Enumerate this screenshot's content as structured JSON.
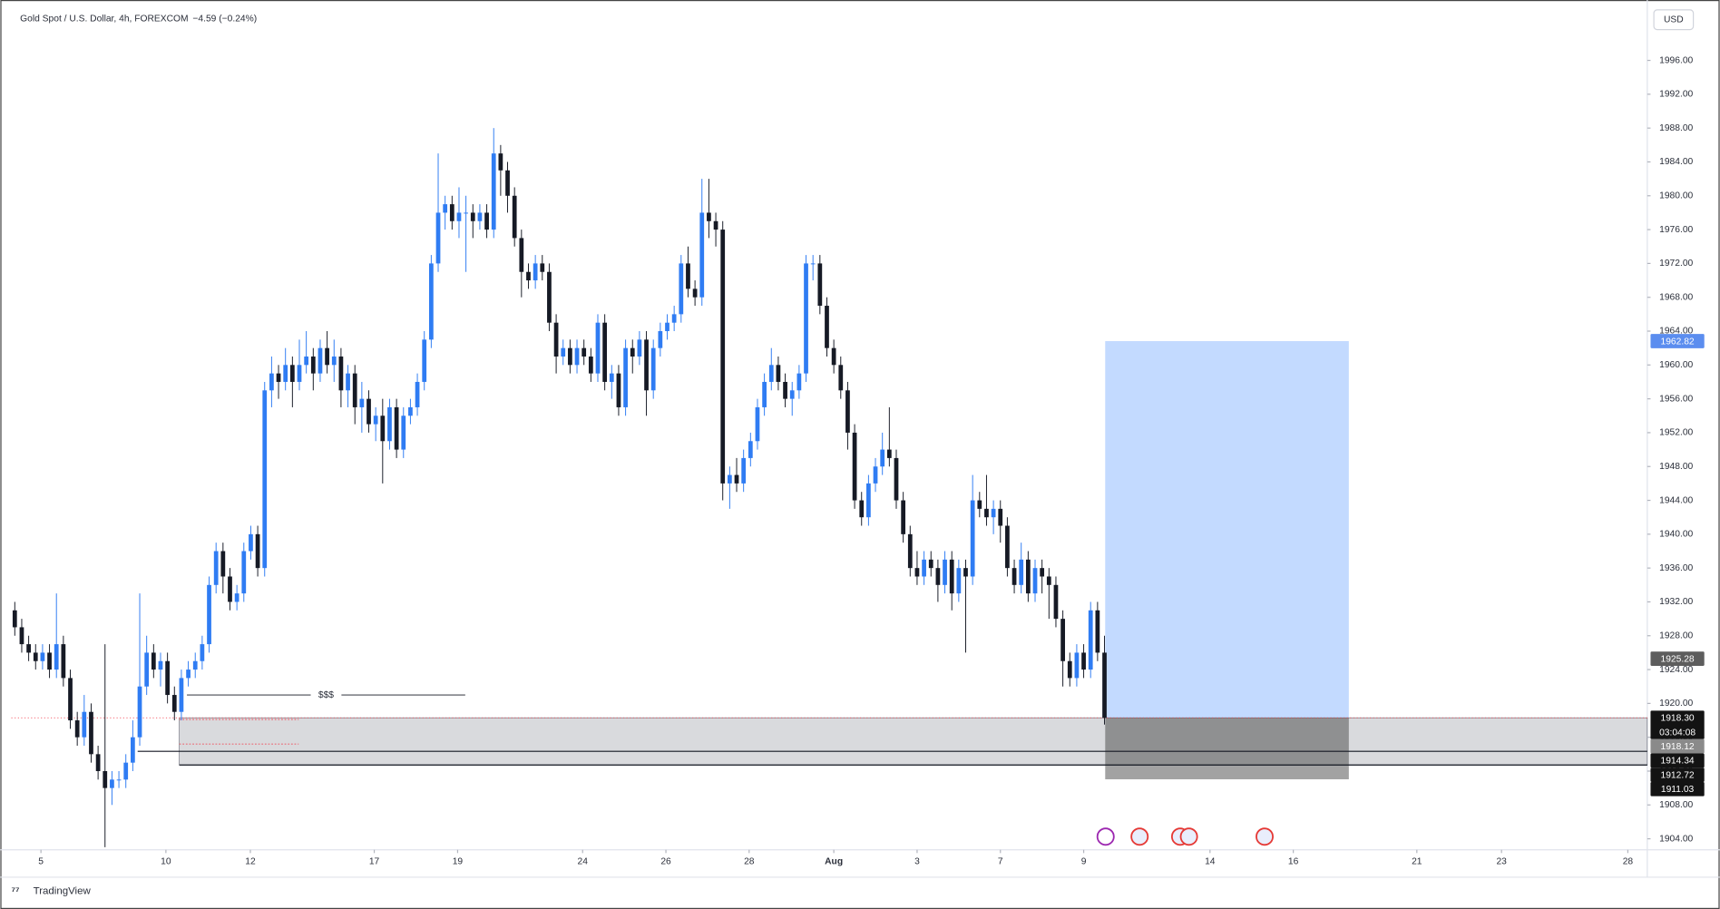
{
  "header": {
    "symbol": "Gold Spot / U.S. Dollar, 4h, FOREXCOM",
    "change": "−4.59 (−0.24%)",
    "currency": "USD"
  },
  "chart_data": {
    "type": "candlestick",
    "open": [
      1931,
      1929,
      1927,
      1926,
      1925,
      1926,
      1924,
      1927,
      1923,
      1918,
      1916,
      1919,
      1914,
      1912,
      1910,
      1911,
      1911,
      1913,
      1916,
      1922,
      1926,
      1924,
      1925,
      1921,
      1919,
      1923,
      1924,
      1925,
      1927,
      1934,
      1938,
      1935,
      1932,
      1933,
      1938,
      1940,
      1936,
      1957,
      1959,
      1958,
      1960,
      1958,
      1960,
      1961,
      1959,
      1962,
      1960,
      1961,
      1957,
      1959,
      1955,
      1956,
      1953,
      1954,
      1951,
      1955,
      1950,
      1954,
      1955,
      1958,
      1963,
      1972,
      1978,
      1979,
      1977,
      1978,
      1978,
      1977,
      1978,
      1976,
      1985,
      1983,
      1980,
      1975,
      1971,
      1970,
      1972,
      1971,
      1965,
      1961,
      1962,
      1960,
      1962,
      1961,
      1959,
      1965,
      1958,
      1959,
      1955,
      1962,
      1961,
      1963,
      1957,
      1962,
      1964,
      1965,
      1966,
      1972,
      1969,
      1968,
      1978,
      1977,
      1976,
      1946,
      1947,
      1946,
      1949,
      1951,
      1955,
      1958,
      1960,
      1958,
      1956,
      1957,
      1959,
      1972,
      1972,
      1967,
      1962,
      1960,
      1957,
      1952,
      1944,
      1942,
      1946,
      1948,
      1950,
      1949,
      1944,
      1940,
      1936,
      1935,
      1937,
      1936,
      1934,
      1937,
      1933,
      1936,
      1935,
      1944,
      1943,
      1942,
      1943,
      1941,
      1936,
      1934,
      1937,
      1933,
      1936,
      1935,
      1934,
      1930,
      1925,
      1923,
      1926,
      1924,
      1931,
      1926
    ],
    "high": [
      1932,
      1930,
      1928,
      1927,
      1927,
      1927,
      1933,
      1928,
      1924,
      1919,
      1921,
      1920,
      1915,
      1927,
      1912,
      1912,
      1914,
      1918,
      1933,
      1928,
      1927,
      1926,
      1926,
      1922,
      1924,
      1925,
      1926,
      1928,
      1935,
      1939,
      1939,
      1936,
      1934,
      1939,
      1941,
      1941,
      1958,
      1961,
      1960,
      1962,
      1961,
      1963,
      1964,
      1962,
      1963,
      1964,
      1963,
      1962,
      1960,
      1960,
      1958,
      1957,
      1955,
      1956,
      1956,
      1956,
      1955,
      1956,
      1959,
      1964,
      1973,
      1985,
      1980,
      1980,
      1981,
      1980,
      1979,
      1979,
      1979,
      1988,
      1986,
      1984,
      1981,
      1976,
      1972,
      1973,
      1973,
      1972,
      1966,
      1963,
      1963,
      1963,
      1963,
      1962,
      1966,
      1966,
      1960,
      1960,
      1963,
      1963,
      1964,
      1964,
      1963,
      1965,
      1966,
      1967,
      1973,
      1974,
      1970,
      1982,
      1982,
      1978,
      1977,
      1948,
      1949,
      1950,
      1952,
      1956,
      1959,
      1962,
      1961,
      1959,
      1958,
      1960,
      1973,
      1973,
      1973,
      1968,
      1963,
      1961,
      1958,
      1953,
      1945,
      1947,
      1949,
      1952,
      1955,
      1950,
      1945,
      1941,
      1938,
      1938,
      1938,
      1937,
      1938,
      1938,
      1937,
      1937,
      1947,
      1945,
      1947,
      1944,
      1944,
      1942,
      1937,
      1939,
      1938,
      1937,
      1937,
      1936,
      1935,
      1931,
      1926,
      1927,
      1927,
      1932,
      1932,
      1928
    ],
    "low": [
      1928,
      1926,
      1925,
      1924,
      1924,
      1923,
      1923,
      1922,
      1917,
      1915,
      1915,
      1913,
      1911,
      1903,
      1908,
      1910,
      1910,
      1912,
      1915,
      1921,
      1923,
      1922,
      1920,
      1918,
      1918,
      1922,
      1923,
      1924,
      1926,
      1933,
      1933,
      1931,
      1931,
      1932,
      1937,
      1935,
      1935,
      1955,
      1956,
      1957,
      1955,
      1957,
      1959,
      1957,
      1958,
      1959,
      1958,
      1955,
      1955,
      1953,
      1952,
      1952,
      1951,
      1946,
      1950,
      1949,
      1949,
      1953,
      1954,
      1957,
      1962,
      1971,
      1976,
      1976,
      1975,
      1971,
      1975,
      1976,
      1975,
      1975,
      1980,
      1978,
      1974,
      1968,
      1969,
      1969,
      1970,
      1964,
      1959,
      1960,
      1959,
      1959,
      1960,
      1958,
      1958,
      1957,
      1956,
      1954,
      1954,
      1959,
      1960,
      1954,
      1956,
      1961,
      1963,
      1964,
      1965,
      1968,
      1967,
      1967,
      1975,
      1974,
      1944,
      1943,
      1945,
      1945,
      1948,
      1950,
      1954,
      1957,
      1957,
      1955,
      1954,
      1956,
      1958,
      1970,
      1966,
      1961,
      1959,
      1956,
      1950,
      1943,
      1941,
      1941,
      1945,
      1947,
      1948,
      1943,
      1939,
      1935,
      1934,
      1934,
      1935,
      1932,
      1933,
      1931,
      1932,
      1926,
      1934,
      1942,
      1941,
      1940,
      1939,
      1935,
      1933,
      1933,
      1932,
      1932,
      1933,
      1930,
      1929,
      1922,
      1922,
      1922,
      1923,
      1923,
      1925,
      1917.5
    ],
    "close": [
      1929,
      1927,
      1926,
      1925,
      1926,
      1924,
      1927,
      1923,
      1918,
      1916,
      1919,
      1914,
      1912,
      1910,
      1911,
      1911,
      1913,
      1916,
      1922,
      1926,
      1924,
      1925,
      1921,
      1919,
      1923,
      1924,
      1925,
      1927,
      1934,
      1938,
      1935,
      1932,
      1933,
      1938,
      1940,
      1936,
      1957,
      1959,
      1958,
      1960,
      1958,
      1960,
      1961,
      1959,
      1962,
      1960,
      1961,
      1957,
      1959,
      1955,
      1956,
      1953,
      1954,
      1951,
      1955,
      1950,
      1954,
      1955,
      1958,
      1963,
      1972,
      1978,
      1979,
      1977,
      1978,
      1978,
      1977,
      1978,
      1976,
      1985,
      1983,
      1980,
      1975,
      1971,
      1970,
      1972,
      1971,
      1965,
      1961,
      1962,
      1960,
      1962,
      1961,
      1959,
      1965,
      1958,
      1959,
      1955,
      1962,
      1961,
      1963,
      1957,
      1962,
      1964,
      1965,
      1966,
      1972,
      1969,
      1968,
      1978,
      1977,
      1976,
      1946,
      1947,
      1946,
      1949,
      1951,
      1955,
      1958,
      1960,
      1958,
      1956,
      1957,
      1959,
      1972,
      1972,
      1967,
      1962,
      1960,
      1957,
      1952,
      1944,
      1942,
      1946,
      1948,
      1950,
      1949,
      1944,
      1940,
      1936,
      1935,
      1937,
      1936,
      1934,
      1937,
      1933,
      1936,
      1935,
      1944,
      1943,
      1942,
      1943,
      1941,
      1936,
      1934,
      1937,
      1933,
      1936,
      1935,
      1934,
      1930,
      1925,
      1923,
      1926,
      1924,
      1931,
      1926,
      1918.3
    ],
    "up_color": "#2f7cf3",
    "down_color": "#161a25",
    "xlim": [
      0,
      235.7
    ],
    "xticks": [
      {
        "value": 4.27,
        "label": "5"
      },
      {
        "value": 22.27,
        "label": "10"
      },
      {
        "value": 34.44,
        "label": "12"
      },
      {
        "value": 52.29,
        "label": "17"
      },
      {
        "value": 64.3,
        "label": "19"
      },
      {
        "value": 82.31,
        "label": "24"
      },
      {
        "value": 94.31,
        "label": "26"
      },
      {
        "value": 106.3,
        "label": "28"
      },
      {
        "value": 118.5,
        "label": "Aug"
      },
      {
        "value": 130.5,
        "label": "3"
      },
      {
        "value": 142.5,
        "label": "7"
      },
      {
        "value": 154.5,
        "label": "9"
      },
      {
        "value": 172.7,
        "label": "14"
      },
      {
        "value": 184.7,
        "label": "16"
      },
      {
        "value": 202.5,
        "label": "21"
      },
      {
        "value": 214.7,
        "label": "23"
      },
      {
        "value": 232.9,
        "label": "28"
      }
    ],
    "ylim": [
      1902.7,
      2002.1
    ],
    "yticks": [
      {
        "value": 1904,
        "label": "1904.00"
      },
      {
        "value": 1908,
        "label": "1908.00"
      },
      {
        "value": 1912,
        "label": "1912.00"
      },
      {
        "value": 1916,
        "label": "1916.00"
      },
      {
        "value": 1920,
        "label": "1920.00"
      },
      {
        "value": 1924,
        "label": "1924.00"
      },
      {
        "value": 1928,
        "label": "1928.00"
      },
      {
        "value": 1932,
        "label": "1932.00"
      },
      {
        "value": 1936,
        "label": "1936.00"
      },
      {
        "value": 1940,
        "label": "1940.00"
      },
      {
        "value": 1944,
        "label": "1944.00"
      },
      {
        "value": 1948,
        "label": "1948.00"
      },
      {
        "value": 1952,
        "label": "1952.00"
      },
      {
        "value": 1956,
        "label": "1956.00"
      },
      {
        "value": 1960,
        "label": "1960.00"
      },
      {
        "value": 1964,
        "label": "1964.00"
      },
      {
        "value": 1968,
        "label": "1968.00"
      },
      {
        "value": 1972,
        "label": "1972.00"
      },
      {
        "value": 1976,
        "label": "1976.00"
      },
      {
        "value": 1980,
        "label": "1980.00"
      },
      {
        "value": 1984,
        "label": "1984.00"
      },
      {
        "value": 1988,
        "label": "1988.00"
      },
      {
        "value": 1992,
        "label": "1992.00"
      },
      {
        "value": 1996,
        "label": "1996.00"
      }
    ],
    "grid": false,
    "levels": [
      {
        "value": 1914.34,
        "x_start": 18.2
      },
      {
        "value": 1912.72,
        "x_start": 24.2
      }
    ],
    "zone": {
      "low": 1912.72,
      "high": 1918.3,
      "x_start": 24.2
    },
    "dotted_levels": [
      {
        "value": 1918.1,
        "x_start": 24.2,
        "x_end": 41.4
      },
      {
        "value": 1915.2,
        "x_start": 24.2,
        "x_end": 41.4
      }
    ],
    "liquidity": {
      "label": "$$$",
      "value": 1921,
      "x_start": 25.3,
      "x_end": 65.4
    },
    "position": {
      "target": 1962.82,
      "entry": 1918.3,
      "stop": 1911.03,
      "x_start": 157.6,
      "x_end": 192.7
    },
    "price_labels": [
      {
        "value": 1962.82,
        "color": "#5b8def"
      },
      {
        "value": 1925.28,
        "color": "#5d5d5d"
      },
      {
        "value": 1918.3,
        "label": "1918.30",
        "countdown": "03:04:08",
        "color": "#131313"
      },
      {
        "value": 1918.12,
        "color": "#8a8a8a"
      },
      {
        "value": 1914.34,
        "color": "#131313"
      },
      {
        "value": 1912.72,
        "color": "#131313"
      },
      {
        "value": 1911.03,
        "color": "#131313"
      }
    ]
  },
  "footer": {
    "brand": "TradingView"
  }
}
